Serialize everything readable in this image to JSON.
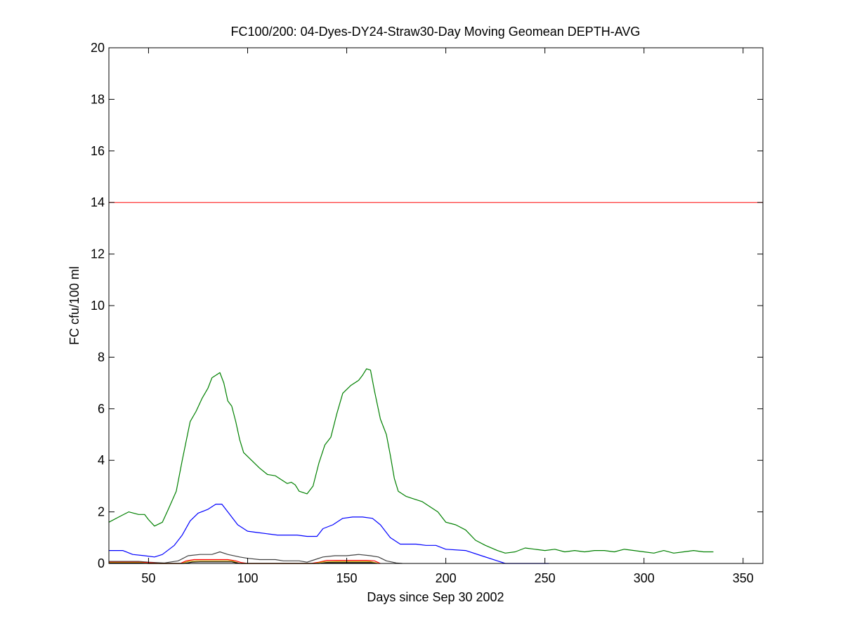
{
  "chart_data": {
    "type": "line",
    "title": "FC100/200: 04-Dyes-DY24-Straw30-Day Moving Geomean DEPTH-AVG",
    "xlabel": "Days since Sep 30 2002",
    "ylabel": "FC cfu/100 ml",
    "xlim": [
      30,
      360
    ],
    "ylim": [
      0,
      20
    ],
    "xticks": [
      50,
      100,
      150,
      200,
      250,
      300,
      350
    ],
    "yticks": [
      0,
      2,
      4,
      6,
      8,
      10,
      12,
      14,
      16,
      18,
      20
    ],
    "grid": false,
    "reference_line": {
      "y": 14,
      "color": "#ff0000"
    },
    "series": [
      {
        "color": "#008000",
        "points": [
          [
            30,
            1.6
          ],
          [
            35,
            1.8
          ],
          [
            40,
            2.0
          ],
          [
            45,
            1.9
          ],
          [
            48,
            1.9
          ],
          [
            50,
            1.7
          ],
          [
            53,
            1.45
          ],
          [
            57,
            1.6
          ],
          [
            60,
            2.1
          ],
          [
            64,
            2.8
          ],
          [
            67,
            4.0
          ],
          [
            71,
            5.5
          ],
          [
            74,
            5.9
          ],
          [
            77,
            6.4
          ],
          [
            80,
            6.8
          ],
          [
            82,
            7.2
          ],
          [
            84,
            7.3
          ],
          [
            86,
            7.4
          ],
          [
            88,
            7.0
          ],
          [
            90,
            6.3
          ],
          [
            92,
            6.1
          ],
          [
            94,
            5.5
          ],
          [
            96,
            4.8
          ],
          [
            98,
            4.3
          ],
          [
            102,
            4.0
          ],
          [
            106,
            3.7
          ],
          [
            110,
            3.45
          ],
          [
            114,
            3.4
          ],
          [
            118,
            3.2
          ],
          [
            120,
            3.1
          ],
          [
            122,
            3.15
          ],
          [
            124,
            3.05
          ],
          [
            126,
            2.8
          ],
          [
            130,
            2.7
          ],
          [
            133,
            3.0
          ],
          [
            136,
            3.9
          ],
          [
            139,
            4.6
          ],
          [
            142,
            4.9
          ],
          [
            145,
            5.8
          ],
          [
            148,
            6.6
          ],
          [
            152,
            6.9
          ],
          [
            156,
            7.1
          ],
          [
            158,
            7.3
          ],
          [
            160,
            7.55
          ],
          [
            162,
            7.5
          ],
          [
            164,
            6.7
          ],
          [
            167,
            5.6
          ],
          [
            170,
            5.0
          ],
          [
            172,
            4.2
          ],
          [
            174,
            3.3
          ],
          [
            176,
            2.8
          ],
          [
            180,
            2.6
          ],
          [
            184,
            2.5
          ],
          [
            188,
            2.4
          ],
          [
            192,
            2.2
          ],
          [
            196,
            2.0
          ],
          [
            200,
            1.6
          ],
          [
            205,
            1.5
          ],
          [
            210,
            1.3
          ],
          [
            215,
            0.9
          ],
          [
            220,
            0.7
          ],
          [
            226,
            0.5
          ],
          [
            230,
            0.4
          ],
          [
            235,
            0.45
          ],
          [
            240,
            0.6
          ],
          [
            245,
            0.55
          ],
          [
            250,
            0.5
          ],
          [
            255,
            0.55
          ],
          [
            260,
            0.45
          ],
          [
            265,
            0.5
          ],
          [
            270,
            0.45
          ],
          [
            275,
            0.5
          ],
          [
            280,
            0.5
          ],
          [
            285,
            0.45
          ],
          [
            290,
            0.55
          ],
          [
            295,
            0.5
          ],
          [
            300,
            0.45
          ],
          [
            305,
            0.4
          ],
          [
            310,
            0.5
          ],
          [
            315,
            0.4
          ],
          [
            320,
            0.45
          ],
          [
            325,
            0.5
          ],
          [
            330,
            0.45
          ],
          [
            335,
            0.45
          ]
        ]
      },
      {
        "color": "#0000ff",
        "points": [
          [
            30,
            0.5
          ],
          [
            37,
            0.5
          ],
          [
            42,
            0.35
          ],
          [
            48,
            0.3
          ],
          [
            53,
            0.25
          ],
          [
            57,
            0.35
          ],
          [
            63,
            0.7
          ],
          [
            67,
            1.1
          ],
          [
            71,
            1.65
          ],
          [
            75,
            1.95
          ],
          [
            80,
            2.1
          ],
          [
            84,
            2.3
          ],
          [
            87,
            2.3
          ],
          [
            90,
            2.0
          ],
          [
            95,
            1.5
          ],
          [
            100,
            1.25
          ],
          [
            105,
            1.2
          ],
          [
            110,
            1.15
          ],
          [
            115,
            1.1
          ],
          [
            120,
            1.1
          ],
          [
            125,
            1.1
          ],
          [
            130,
            1.05
          ],
          [
            135,
            1.05
          ],
          [
            138,
            1.35
          ],
          [
            143,
            1.5
          ],
          [
            148,
            1.75
          ],
          [
            153,
            1.8
          ],
          [
            158,
            1.8
          ],
          [
            163,
            1.75
          ],
          [
            167,
            1.5
          ],
          [
            172,
            1.0
          ],
          [
            177,
            0.75
          ],
          [
            185,
            0.75
          ],
          [
            190,
            0.7
          ],
          [
            195,
            0.7
          ],
          [
            200,
            0.55
          ],
          [
            210,
            0.5
          ],
          [
            218,
            0.3
          ],
          [
            226,
            0.1
          ],
          [
            230,
            0.0
          ],
          [
            240,
            0.0
          ],
          [
            252,
            0.0
          ]
        ]
      },
      {
        "color": "#404040",
        "points": [
          [
            30,
            0.08
          ],
          [
            45,
            0.08
          ],
          [
            50,
            0.05
          ],
          [
            58,
            0.02
          ],
          [
            65,
            0.1
          ],
          [
            70,
            0.3
          ],
          [
            76,
            0.35
          ],
          [
            82,
            0.35
          ],
          [
            86,
            0.45
          ],
          [
            90,
            0.35
          ],
          [
            96,
            0.25
          ],
          [
            100,
            0.2
          ],
          [
            106,
            0.15
          ],
          [
            110,
            0.15
          ],
          [
            114,
            0.15
          ],
          [
            118,
            0.1
          ],
          [
            122,
            0.1
          ],
          [
            126,
            0.1
          ],
          [
            130,
            0.05
          ],
          [
            134,
            0.15
          ],
          [
            138,
            0.25
          ],
          [
            144,
            0.3
          ],
          [
            150,
            0.3
          ],
          [
            156,
            0.35
          ],
          [
            162,
            0.3
          ],
          [
            166,
            0.25
          ],
          [
            170,
            0.1
          ],
          [
            175,
            0.02
          ],
          [
            178,
            0.0
          ]
        ]
      },
      {
        "color": "#ff0000",
        "points": [
          [
            30,
            0.05
          ],
          [
            45,
            0.05
          ],
          [
            50,
            0.03
          ],
          [
            56,
            0.0
          ],
          [
            66,
            0.0
          ],
          [
            69,
            0.1
          ],
          [
            73,
            0.15
          ],
          [
            80,
            0.15
          ],
          [
            90,
            0.15
          ],
          [
            94,
            0.1
          ],
          [
            97,
            0.03
          ],
          [
            100,
            0.0
          ],
          [
            132,
            0.0
          ],
          [
            136,
            0.05
          ],
          [
            140,
            0.12
          ],
          [
            145,
            0.12
          ],
          [
            160,
            0.12
          ],
          [
            164,
            0.1
          ],
          [
            167,
            0.0
          ]
        ]
      },
      {
        "color": "#c0a000",
        "points": [
          [
            30,
            0.03
          ],
          [
            46,
            0.03
          ],
          [
            50,
            0.0
          ],
          [
            67,
            0.0
          ],
          [
            70,
            0.08
          ],
          [
            75,
            0.1
          ],
          [
            92,
            0.1
          ],
          [
            96,
            0.0
          ],
          [
            134,
            0.0
          ],
          [
            138,
            0.06
          ],
          [
            145,
            0.07
          ],
          [
            162,
            0.07
          ],
          [
            166,
            0.0
          ]
        ]
      },
      {
        "color": "#000000",
        "points": [
          [
            30,
            0.01
          ],
          [
            46,
            0.01
          ],
          [
            50,
            0.0
          ],
          [
            68,
            0.0
          ],
          [
            72,
            0.05
          ],
          [
            76,
            0.06
          ],
          [
            92,
            0.06
          ],
          [
            96,
            0.0
          ],
          [
            136,
            0.0
          ],
          [
            140,
            0.03
          ],
          [
            162,
            0.03
          ],
          [
            165,
            0.0
          ]
        ]
      }
    ]
  }
}
